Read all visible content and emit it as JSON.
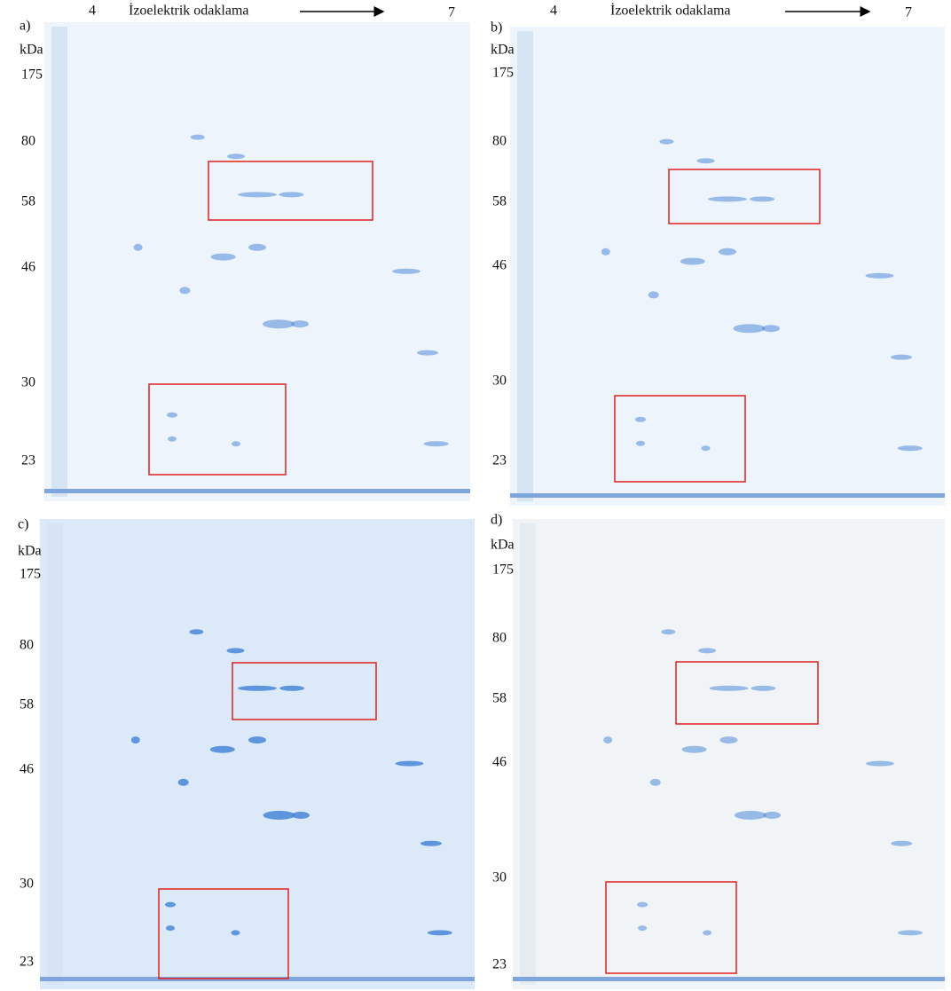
{
  "panels": [
    {
      "label": "a)",
      "unit": "kDa",
      "markers": [
        "175",
        "80",
        "58",
        "46",
        "30",
        "23"
      ],
      "ph_start": "4",
      "axis_title": "İzoelektrik odaklama",
      "ph_end": "7"
    },
    {
      "label": "b)",
      "unit": "kDa",
      "markers": [
        "175",
        "80",
        "58",
        "46",
        "30",
        "23"
      ],
      "ph_start": "4",
      "axis_title": "İzoelektrik odaklama",
      "ph_end": "7"
    },
    {
      "label": "c)",
      "unit": "kDa",
      "markers": [
        "175",
        "80",
        "58",
        "46",
        "30",
        "23"
      ]
    },
    {
      "label": "d)",
      "unit": "kDa",
      "markers": [
        "175",
        "80",
        "58",
        "46",
        "30",
        "23"
      ]
    }
  ]
}
